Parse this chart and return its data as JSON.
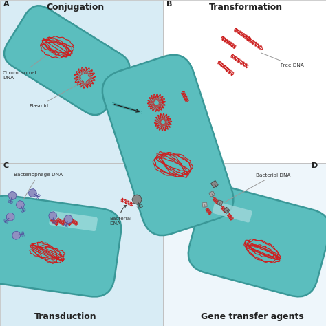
{
  "bg_a": "#d8ecf5",
  "bg_b": "#ffffff",
  "bg_c": "#d8ecf5",
  "bg_d": "#eef6fb",
  "cell_color": "#5bbebe",
  "cell_edge": "#3a9898",
  "cell_lw": 1.8,
  "dna_color": "#cc2020",
  "phage_purple": "#8080bb",
  "phage_purple_edge": "#505090",
  "phage_gray": "#888888",
  "phage_gray_edge": "#555555",
  "title_a": "Conjugation",
  "title_b": "Transformation",
  "title_c": "Transduction",
  "title_d": "Gene transfer agents",
  "ann_chrom": "Chromosomal\nDNA",
  "ann_plasmid": "Plasmid",
  "ann_free_dna": "Free DNA",
  "ann_bact_phage": "Bacteriophage DNA",
  "ann_bact_dna_c": "Bacterial\nDNA",
  "ann_bact_dna_d": "Bacterial DNA"
}
